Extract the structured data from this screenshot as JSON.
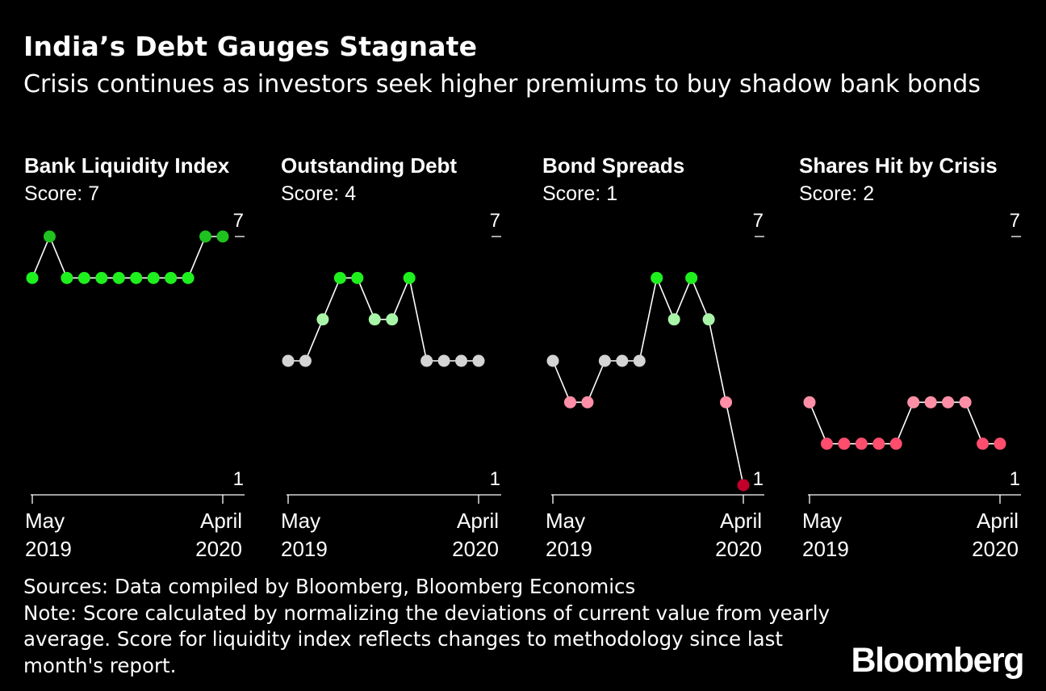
{
  "title": "India’s Debt Gauges Stagnate",
  "subtitle": "Crisis continues as investors seek higher premiums to buy shadow bank bonds",
  "footer": {
    "sources": "Sources: Data compiled by Bloomberg, Bloomberg Economics",
    "note": "Note: Score calculated by normalizing the deviations of current value from yearly average. Score for liquidity index reflects changes to methodology since last month's report."
  },
  "logo_text": "Bloomberg",
  "colors": {
    "background": "#000000",
    "line": "#ffffff",
    "score_1": "#c0002a",
    "score_2": "#ff4d6e",
    "score_3": "#ff8fa6",
    "score_4": "#d4d4d4",
    "score_5": "#a8f5a8",
    "score_6": "#1ef01e",
    "score_7": "#1fc21f"
  },
  "chart_data": [
    {
      "type": "line",
      "title": "Bank Liquidity Index",
      "score_label": "Score: 7",
      "x": [
        "May 2019",
        "Jun 2019",
        "Jul 2019",
        "Aug 2019",
        "Sep 2019",
        "Oct 2019",
        "Nov 2019",
        "Dec 2019",
        "Jan 2020",
        "Feb 2020",
        "Mar 2020",
        "April 2020"
      ],
      "values": [
        6,
        7,
        6,
        6,
        6,
        6,
        6,
        6,
        6,
        6,
        7,
        7
      ],
      "ylim": [
        1,
        7
      ],
      "y_tick_labels": [
        "7",
        "1"
      ],
      "x_tick_labels": [
        [
          "May",
          "2019"
        ],
        [
          "April",
          "2020"
        ]
      ]
    },
    {
      "type": "line",
      "title": "Outstanding Debt",
      "score_label": "Score: 4",
      "x": [
        "May 2019",
        "Jun 2019",
        "Jul 2019",
        "Aug 2019",
        "Sep 2019",
        "Oct 2019",
        "Nov 2019",
        "Dec 2019",
        "Jan 2020",
        "Feb 2020",
        "Mar 2020",
        "April 2020"
      ],
      "values": [
        4,
        4,
        5,
        6,
        6,
        5,
        5,
        6,
        4,
        4,
        4,
        4
      ],
      "ylim": [
        1,
        7
      ],
      "y_tick_labels": [
        "7",
        "1"
      ],
      "x_tick_labels": [
        [
          "May",
          "2019"
        ],
        [
          "April",
          "2020"
        ]
      ]
    },
    {
      "type": "line",
      "title": "Bond Spreads",
      "score_label": "Score: 1",
      "x": [
        "May 2019",
        "Jun 2019",
        "Jul 2019",
        "Aug 2019",
        "Sep 2019",
        "Oct 2019",
        "Nov 2019",
        "Dec 2019",
        "Jan 2020",
        "Feb 2020",
        "Mar 2020",
        "April 2020"
      ],
      "values": [
        4,
        3,
        3,
        4,
        4,
        4,
        6,
        5,
        6,
        5,
        3,
        1
      ],
      "ylim": [
        1,
        7
      ],
      "y_tick_labels": [
        "7",
        "1"
      ],
      "x_tick_labels": [
        [
          "May",
          "2019"
        ],
        [
          "April",
          "2020"
        ]
      ]
    },
    {
      "type": "line",
      "title": "Shares Hit by Crisis",
      "score_label": "Score: 2",
      "x": [
        "May 2019",
        "Jun 2019",
        "Jul 2019",
        "Aug 2019",
        "Sep 2019",
        "Oct 2019",
        "Nov 2019",
        "Dec 2019",
        "Jan 2020",
        "Feb 2020",
        "Mar 2020",
        "April 2020"
      ],
      "values": [
        3,
        2,
        2,
        2,
        2,
        2,
        3,
        3,
        3,
        3,
        2,
        2
      ],
      "ylim": [
        1,
        7
      ],
      "y_tick_labels": [
        "7",
        "1"
      ],
      "x_tick_labels": [
        [
          "May",
          "2019"
        ],
        [
          "April",
          "2020"
        ]
      ]
    }
  ]
}
